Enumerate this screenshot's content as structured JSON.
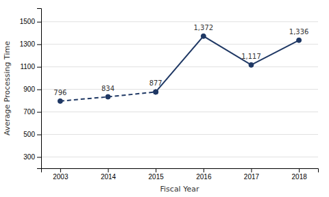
{
  "chart_data": {
    "type": "line",
    "categories": [
      "2003",
      "2014",
      "2015",
      "2016",
      "2017",
      "2018"
    ],
    "series": [
      {
        "color": "#1f3864",
        "line_style": "dashed",
        "marker": "circle",
        "values": [
          796,
          834,
          877,
          null,
          null,
          null
        ],
        "value_labels": [
          "796",
          "834",
          "877",
          null,
          null,
          null
        ]
      },
      {
        "color": "#1f3864",
        "line_style": "solid",
        "marker": "circle",
        "values": [
          null,
          null,
          877,
          1372,
          1117,
          1336
        ],
        "value_labels": [
          null,
          null,
          null,
          "1,372",
          "1,117",
          "1,336"
        ]
      }
    ],
    "xlabel": "Fiscal Year",
    "ylabel": "Average Processing Time",
    "ylim": [
      200,
      1620
    ],
    "yticks": [
      300,
      500,
      700,
      900,
      1100,
      1300,
      1500
    ],
    "grid": true,
    "data_labels": true
  }
}
